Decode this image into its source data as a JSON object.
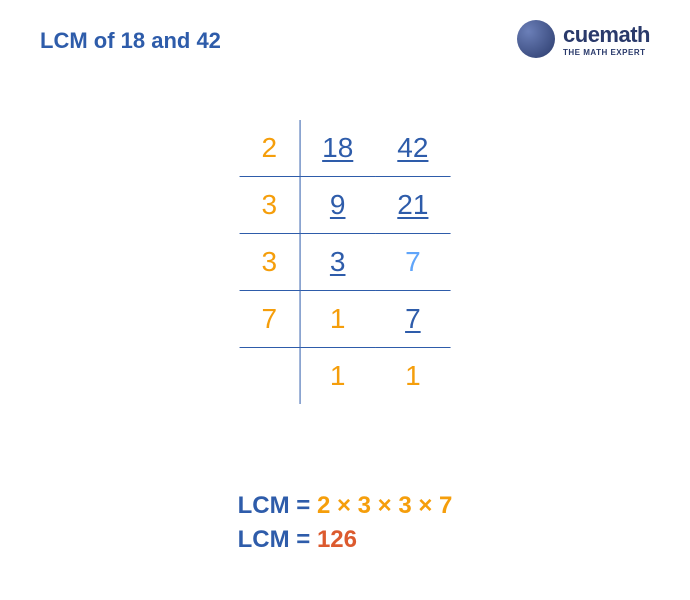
{
  "title": "LCM of 18 and 42",
  "logo": {
    "brand": "cuemath",
    "tagline": "THE MATH EXPERT",
    "orb_gradient_light": "#6b7fb8",
    "orb_gradient_dark": "#2a3a6b",
    "text_color": "#2a3a6b"
  },
  "colors": {
    "title": "#2e5caa",
    "divisor": "#f59e0b",
    "num_underlined": "#2e5caa",
    "num_plain": "#60a5fa",
    "num_one": "#f59e0b",
    "border": "#2e5caa",
    "lcm_label": "#2e5caa",
    "lcm_eq": "#2e5caa",
    "lcm_factors": "#f59e0b",
    "lcm_value": "#dc5a2e"
  },
  "table": {
    "rows": [
      {
        "divisor": "2",
        "a": "18",
        "a_u": true,
        "b": "42",
        "b_u": true,
        "a_col": "num_underlined",
        "b_col": "num_underlined"
      },
      {
        "divisor": "3",
        "a": "9",
        "a_u": true,
        "b": "21",
        "b_u": true,
        "a_col": "num_underlined",
        "b_col": "num_underlined"
      },
      {
        "divisor": "3",
        "a": "3",
        "a_u": true,
        "b": "7",
        "b_u": false,
        "a_col": "num_underlined",
        "b_col": "num_plain"
      },
      {
        "divisor": "7",
        "a": "1",
        "a_u": false,
        "b": "7",
        "b_u": true,
        "a_col": "num_one",
        "b_col": "num_underlined"
      },
      {
        "divisor": "",
        "a": "1",
        "a_u": false,
        "b": "1",
        "b_u": false,
        "a_col": "num_one",
        "b_col": "num_one"
      }
    ]
  },
  "result": {
    "label": "LCM",
    "eq": " = ",
    "factors": "2 × 3 × 3 × 7",
    "value": "126"
  }
}
